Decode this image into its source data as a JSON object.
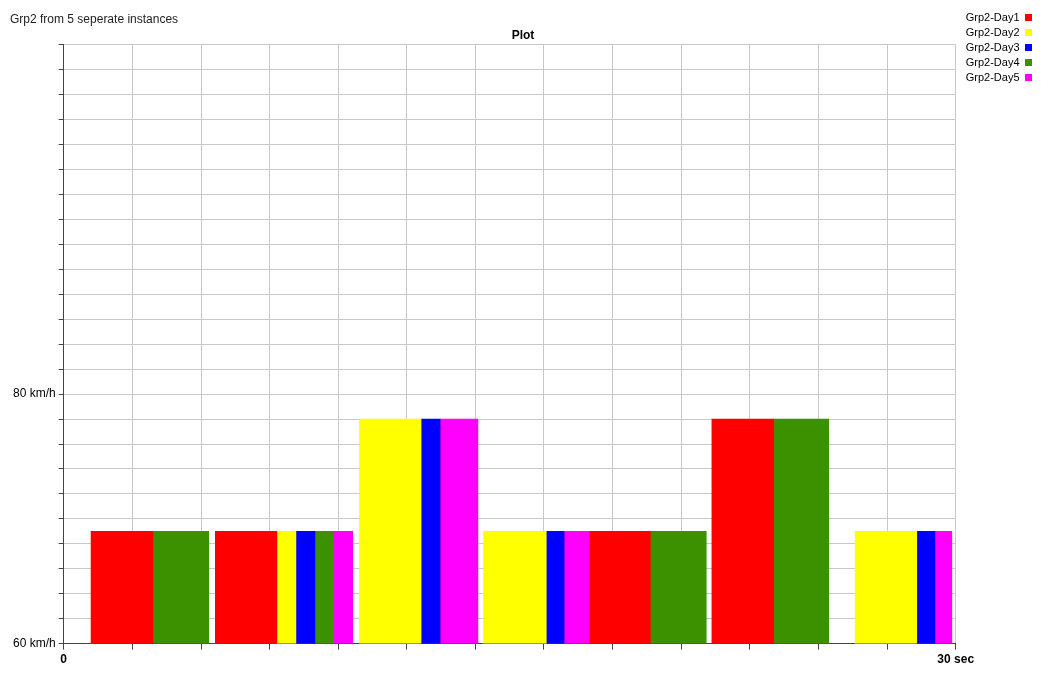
{
  "chart_data": {
    "type": "histogram",
    "title": "Grp2 from 5 seperate instances",
    "subtitle": "Plot",
    "bins": [
      0.92,
      3.0,
      4.88,
      5.1,
      7.17,
      7.81,
      8.45,
      9.05,
      9.72,
      9.95,
      12.02,
      12.66,
      13.93,
      14.12,
      16.23,
      16.83,
      17.69,
      19.73,
      21.61,
      21.8,
      23.88,
      25.73,
      26.62,
      28.69,
      29.3,
      29.87
    ],
    "series": [
      {
        "name": "Grp2-Day1",
        "color": "#ff0000",
        "values": [
          69,
          null,
          null,
          69,
          null,
          null,
          null,
          null,
          null,
          null,
          null,
          null,
          null,
          null,
          null,
          null,
          69,
          null,
          null,
          78,
          null,
          null,
          null,
          null,
          null
        ]
      },
      {
        "name": "Grp2-Day2",
        "color": "#ffff00",
        "values": [
          null,
          null,
          null,
          null,
          69,
          null,
          null,
          null,
          null,
          78,
          null,
          null,
          null,
          69,
          null,
          null,
          null,
          null,
          null,
          null,
          null,
          null,
          69,
          null,
          null
        ]
      },
      {
        "name": "Grp2-Day3",
        "color": "#0000ff",
        "values": [
          null,
          null,
          null,
          null,
          null,
          69,
          null,
          null,
          null,
          null,
          78,
          null,
          null,
          null,
          69,
          null,
          null,
          null,
          null,
          null,
          null,
          null,
          null,
          69,
          null
        ]
      },
      {
        "name": "Grp2-Day4",
        "color": "#3c9100",
        "values": [
          null,
          69,
          null,
          null,
          null,
          null,
          69,
          null,
          null,
          null,
          null,
          null,
          null,
          null,
          null,
          null,
          null,
          69,
          null,
          null,
          78,
          null,
          null,
          null,
          null
        ]
      },
      {
        "name": "Grp2-Day5",
        "color": "#ff00ff",
        "values": [
          null,
          null,
          null,
          null,
          null,
          null,
          null,
          69,
          null,
          null,
          null,
          78,
          null,
          null,
          null,
          69,
          null,
          null,
          null,
          null,
          null,
          null,
          null,
          null,
          69
        ]
      }
    ],
    "xlim": [
      0,
      30
    ],
    "xticks": [
      {
        "value": 0,
        "label": "0"
      },
      {
        "value": 2.31,
        "label": null
      },
      {
        "value": 4.62,
        "label": null
      },
      {
        "value": 6.92,
        "label": null
      },
      {
        "value": 9.23,
        "label": null
      },
      {
        "value": 11.54,
        "label": null
      },
      {
        "value": 13.85,
        "label": null
      },
      {
        "value": 16.15,
        "label": null
      },
      {
        "value": 18.46,
        "label": null
      },
      {
        "value": 20.77,
        "label": null
      },
      {
        "value": 23.08,
        "label": null
      },
      {
        "value": 25.38,
        "label": null
      },
      {
        "value": 27.69,
        "label": null
      },
      {
        "value": 30,
        "label": "30 sec"
      }
    ],
    "ylim": [
      60,
      108
    ],
    "yticks": [
      {
        "value": 60,
        "label": "60 km/h"
      },
      {
        "value": 62,
        "label": null
      },
      {
        "value": 64,
        "label": null
      },
      {
        "value": 66,
        "label": null
      },
      {
        "value": 68,
        "label": null
      },
      {
        "value": 70,
        "label": null
      },
      {
        "value": 72,
        "label": null
      },
      {
        "value": 74,
        "label": null
      },
      {
        "value": 76,
        "label": null
      },
      {
        "value": 78,
        "label": null
      },
      {
        "value": 80,
        "label": "80 km/h"
      },
      {
        "value": 82,
        "label": null
      },
      {
        "value": 84,
        "label": null
      },
      {
        "value": 86,
        "label": null
      },
      {
        "value": 88,
        "label": null
      },
      {
        "value": 90,
        "label": null
      },
      {
        "value": 92,
        "label": null
      },
      {
        "value": 94,
        "label": null
      },
      {
        "value": 96,
        "label": null
      },
      {
        "value": 98,
        "label": null
      },
      {
        "value": 100,
        "label": null
      },
      {
        "value": 102,
        "label": null
      },
      {
        "value": 104,
        "label": null
      },
      {
        "value": 106,
        "label": null
      },
      {
        "value": 108,
        "label": null
      }
    ],
    "grid": true,
    "legend": "top right"
  }
}
